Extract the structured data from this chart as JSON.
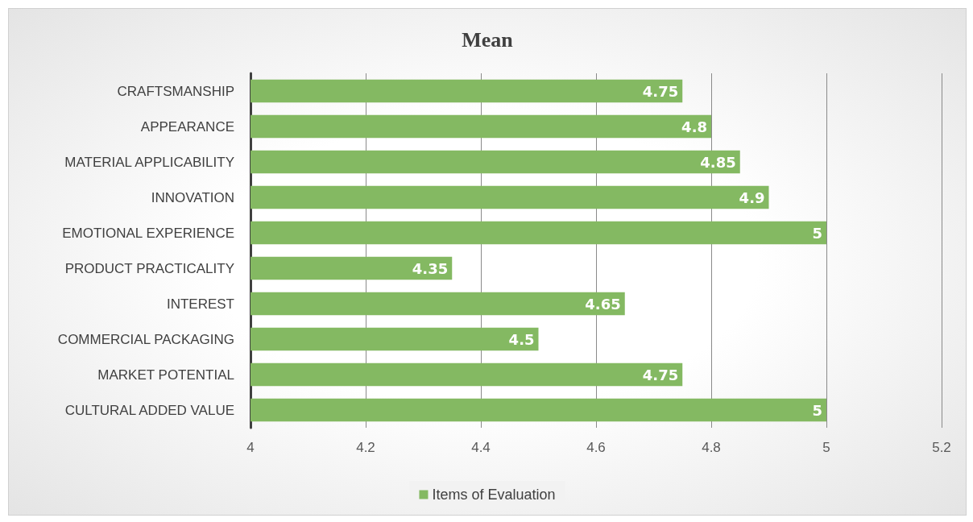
{
  "chart_data": {
    "type": "bar",
    "orientation": "horizontal",
    "title": "Mean",
    "categories": [
      "CRAFTSMANSHIP",
      "APPEARANCE",
      "MATERIAL APPLICABILITY",
      "INNOVATION",
      "EMOTIONAL EXPERIENCE",
      "PRODUCT PRACTICALITY",
      "INTEREST",
      "COMMERCIAL PACKAGING",
      "MARKET POTENTIAL",
      "CULTURAL ADDED VALUE"
    ],
    "series": [
      {
        "name": "Items of Evaluation",
        "color": "#84b962",
        "values": [
          4.75,
          4.8,
          4.85,
          4.9,
          5,
          4.35,
          4.65,
          4.5,
          4.75,
          5
        ]
      }
    ],
    "xlim": [
      4,
      5.2
    ],
    "xticks": [
      4,
      4.2,
      4.4,
      4.6,
      4.8,
      5,
      5.2
    ],
    "grid": "x",
    "legend": "bottom",
    "data_labels": true
  }
}
